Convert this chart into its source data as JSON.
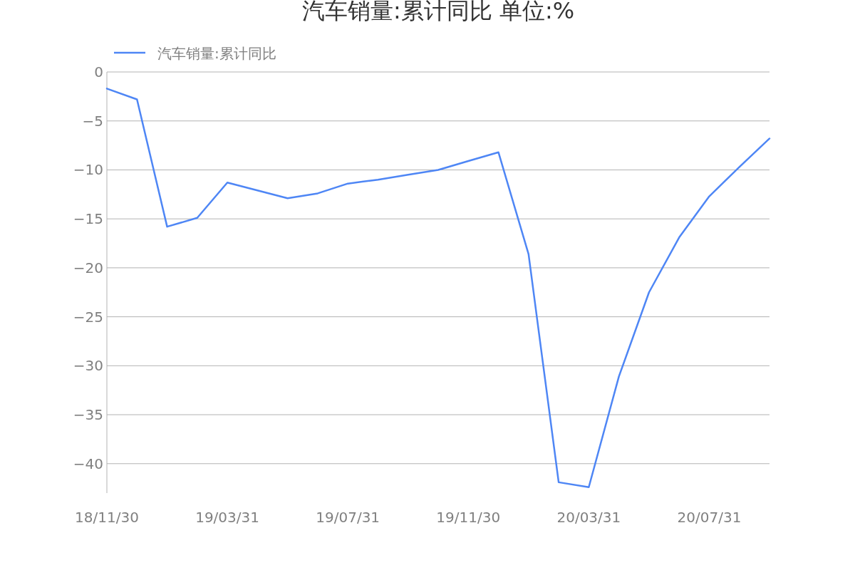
{
  "chart_data": {
    "type": "line",
    "title": "汽车销量:累计同比 单位:%",
    "categories": [
      "18/11/30",
      null,
      null,
      null,
      "19/03/31",
      null,
      null,
      null,
      "19/07/31",
      null,
      null,
      null,
      "19/11/30",
      null,
      null,
      null,
      "20/03/31",
      null,
      null,
      null,
      "20/07/31",
      null,
      null
    ],
    "series": [
      {
        "name": "汽车销量:累计同比",
        "color": "#4e86f5",
        "values": [
          -1.7,
          -2.8,
          -15.8,
          -14.9,
          -11.3,
          -12.1,
          -12.9,
          -12.4,
          -11.4,
          -11.0,
          -10.5,
          -10.0,
          -9.1,
          -8.2,
          -18.6,
          -41.9,
          -42.4,
          -31.1,
          -22.5,
          -16.9,
          -12.7,
          -9.7,
          -6.8
        ]
      }
    ],
    "ylim": [
      -43,
      0
    ],
    "yticks": [
      {
        "value": 0,
        "label": "0"
      },
      {
        "value": -5,
        "label": "−5"
      },
      {
        "value": -10,
        "label": "−10"
      },
      {
        "value": -15,
        "label": "−15"
      },
      {
        "value": -20,
        "label": "−20"
      },
      {
        "value": -25,
        "label": "−25"
      },
      {
        "value": -30,
        "label": "−30"
      },
      {
        "value": -35,
        "label": "−35"
      },
      {
        "value": -40,
        "label": "−40"
      }
    ],
    "grid": "y",
    "legend": "top left",
    "marker": "none",
    "line_style": "solid"
  }
}
